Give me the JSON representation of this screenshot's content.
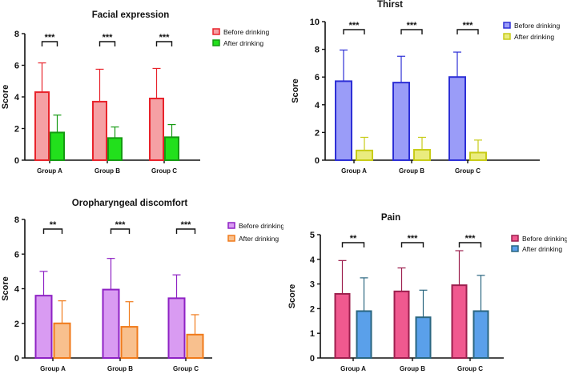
{
  "chart_data": [
    {
      "type": "bar",
      "title": "Facial expression",
      "xlabel": "",
      "ylabel": "Score",
      "ylim": [
        0,
        8
      ],
      "yticks": [
        "0",
        "2",
        "4",
        "6",
        "8"
      ],
      "categories": [
        "Group A",
        "Group B",
        "Group C"
      ],
      "series": [
        {
          "name": "Before drinking",
          "values": [
            4.3,
            3.7,
            3.9
          ],
          "errors": [
            1.85,
            2.05,
            1.9
          ],
          "fill": "#f5a0a4",
          "stroke": "#e8232b"
        },
        {
          "name": "After drinking",
          "values": [
            1.75,
            1.4,
            1.45
          ],
          "errors": [
            1.1,
            0.7,
            0.8
          ],
          "fill": "#22e01c",
          "stroke": "#159a12"
        }
      ],
      "significance": [
        "***",
        "***",
        "***"
      ],
      "legend_position": "top-right"
    },
    {
      "type": "bar",
      "title": "Thirst",
      "xlabel": "",
      "ylabel": "Score",
      "ylim": [
        0,
        10
      ],
      "yticks": [
        "0",
        "2",
        "4",
        "6",
        "8",
        "10"
      ],
      "categories": [
        "Group A",
        "Group B",
        "Group C"
      ],
      "series": [
        {
          "name": "Before drinking",
          "values": [
            5.7,
            5.6,
            6.0
          ],
          "errors": [
            2.25,
            1.9,
            1.8
          ],
          "fill": "#9a9cf8",
          "stroke": "#2d2fd6"
        },
        {
          "name": "After drinking",
          "values": [
            0.7,
            0.75,
            0.55
          ],
          "errors": [
            0.95,
            0.9,
            0.9
          ],
          "fill": "#eaec7e",
          "stroke": "#c8cc18"
        }
      ],
      "significance": [
        "***",
        "***",
        "***"
      ],
      "legend_position": "top-right"
    },
    {
      "type": "bar",
      "title": "Oropharyngeal discomfort",
      "xlabel": "",
      "ylabel": "Score",
      "ylim": [
        0,
        8
      ],
      "yticks": [
        "0",
        "2",
        "4",
        "6",
        "8"
      ],
      "categories": [
        "Group A",
        "Group B",
        "Group C"
      ],
      "series": [
        {
          "name": "Before drinking",
          "values": [
            3.6,
            3.95,
            3.45
          ],
          "errors": [
            1.4,
            1.8,
            1.35
          ],
          "fill": "#d99bf2",
          "stroke": "#8e22c4"
        },
        {
          "name": "After drinking",
          "values": [
            2.0,
            1.8,
            1.35
          ],
          "errors": [
            1.3,
            1.45,
            1.15
          ],
          "fill": "#f8c08e",
          "stroke": "#f07a1a"
        }
      ],
      "significance": [
        "**",
        "***",
        "***"
      ],
      "legend_position": "top-right"
    },
    {
      "type": "bar",
      "title": "Pain",
      "xlabel": "",
      "ylabel": "Score",
      "ylim": [
        0,
        5
      ],
      "yticks": [
        "0",
        "1",
        "2",
        "3",
        "4",
        "5"
      ],
      "categories": [
        "Group A",
        "Group B",
        "Group C"
      ],
      "series": [
        {
          "name": "Before drinking",
          "values": [
            2.6,
            2.7,
            2.95
          ],
          "errors": [
            1.35,
            0.95,
            1.4
          ],
          "fill": "#f0598f",
          "stroke": "#9c1f4e"
        },
        {
          "name": "After drinking",
          "values": [
            1.9,
            1.65,
            1.9
          ],
          "errors": [
            1.35,
            1.1,
            1.45
          ],
          "fill": "#5aa0ea",
          "stroke": "#2a6680"
        }
      ],
      "significance": [
        "**",
        "***",
        "***"
      ],
      "legend_position": "top-right"
    }
  ]
}
